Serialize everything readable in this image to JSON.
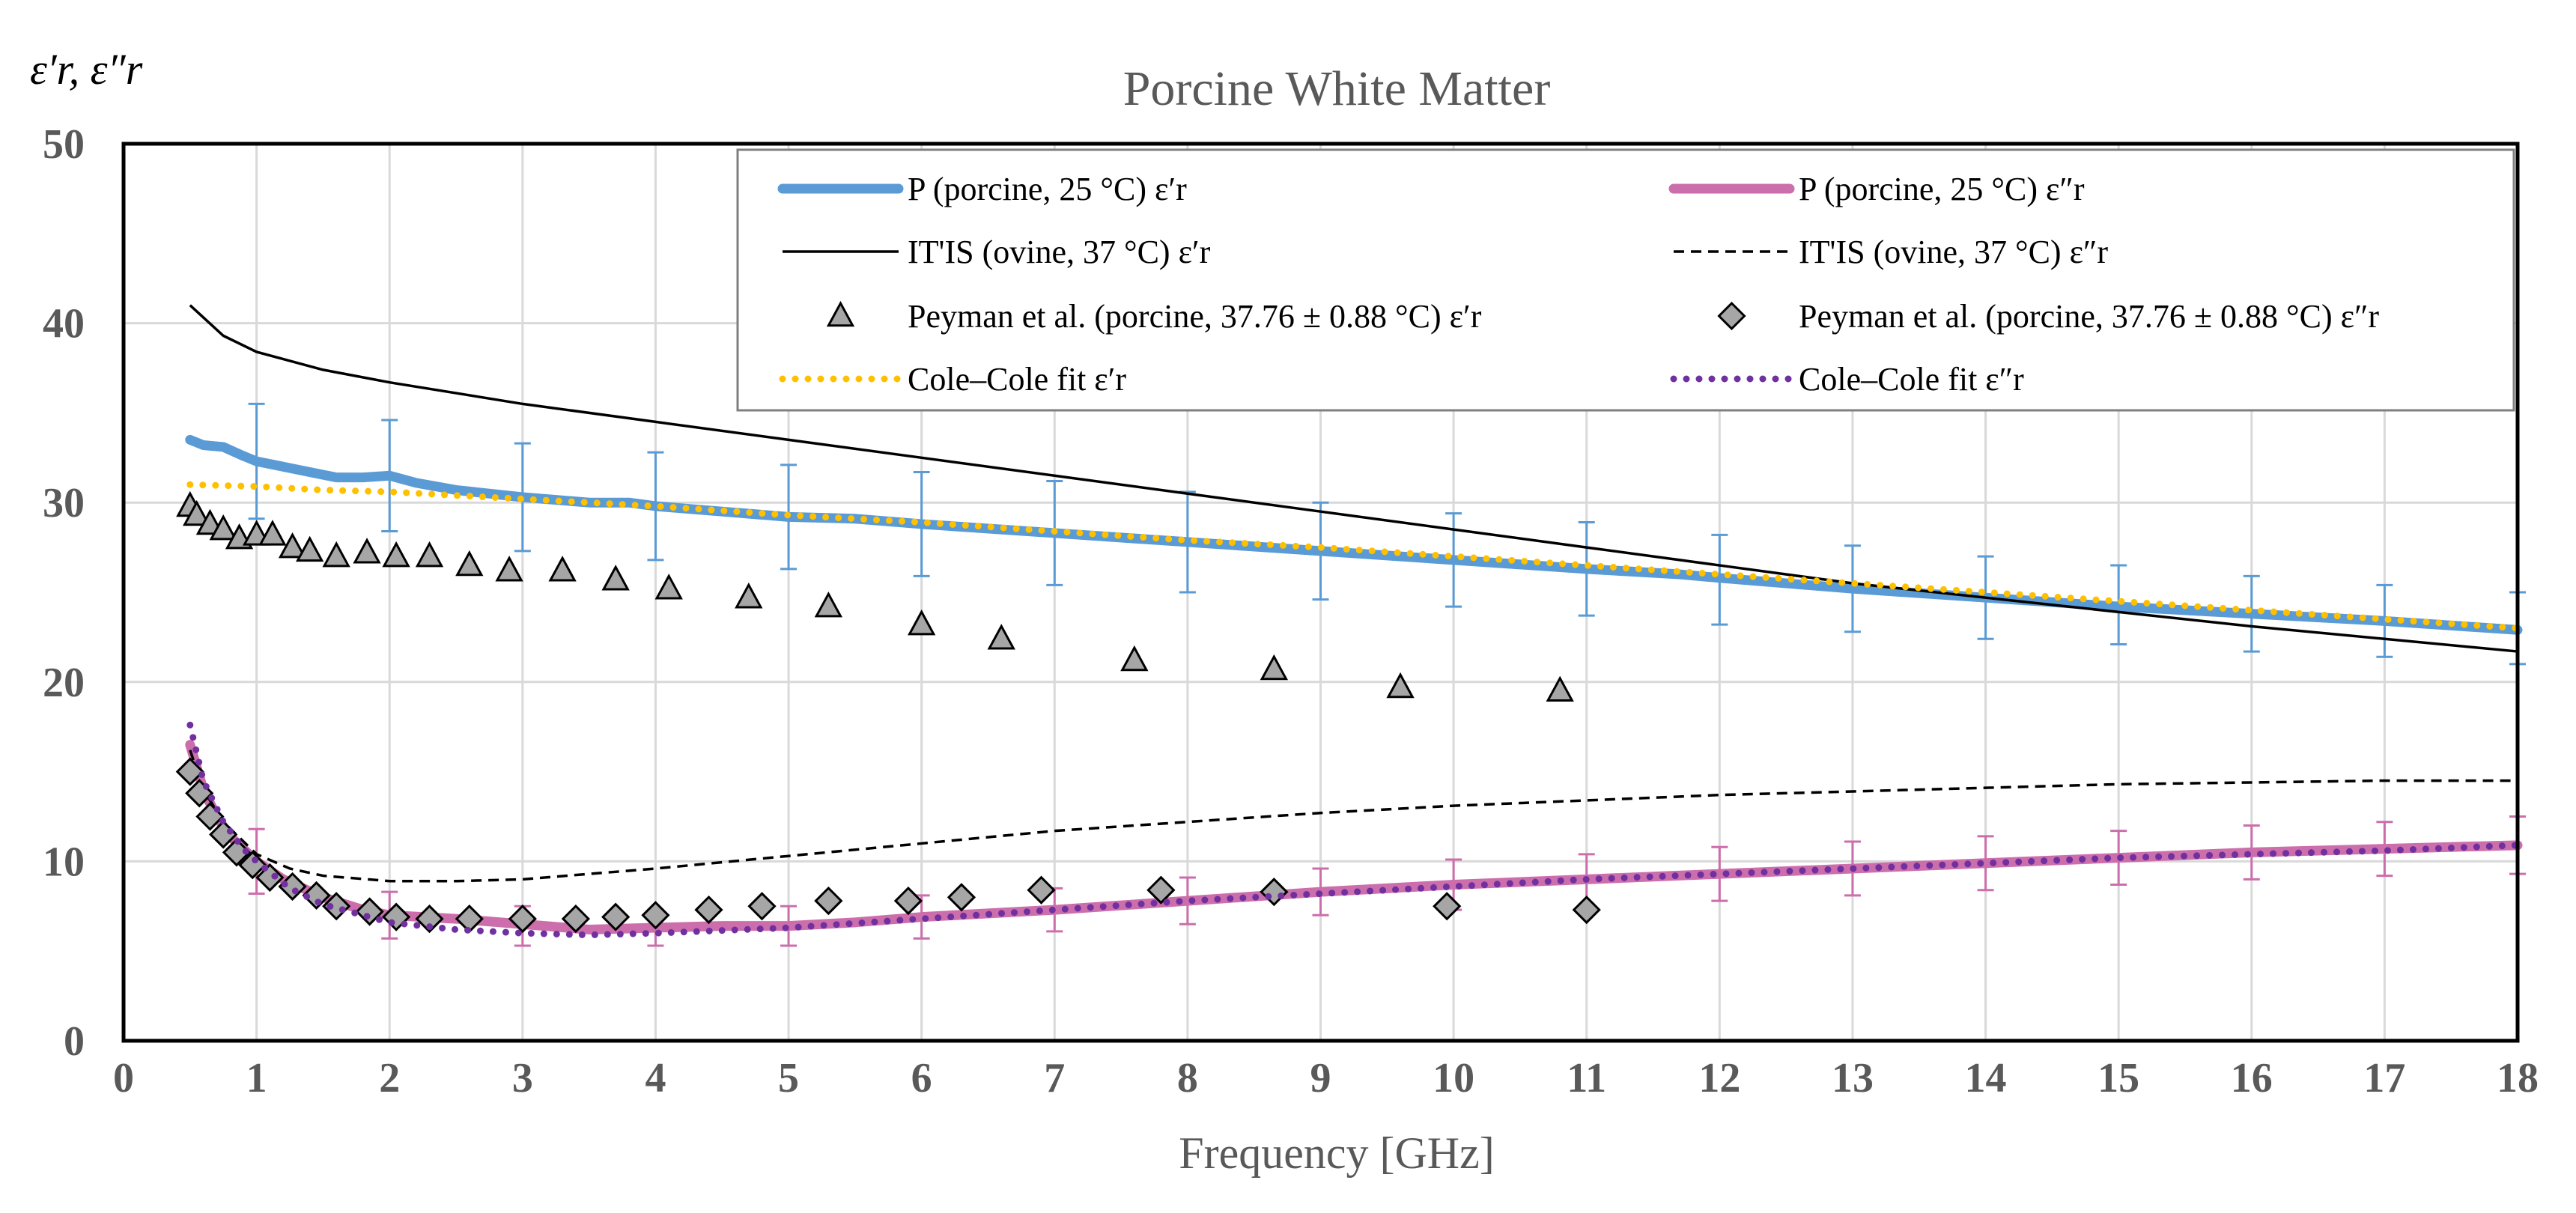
{
  "chart_data": {
    "type": "scatter",
    "title": "Porcine White Matter",
    "xlabel": "Frequency [GHz]",
    "ylabel": "ε′r, ε″r",
    "xlim": [
      0,
      18
    ],
    "ylim": [
      0,
      50
    ],
    "xticks": [
      0,
      1,
      2,
      3,
      4,
      5,
      6,
      7,
      8,
      9,
      10,
      11,
      12,
      13,
      14,
      15,
      16,
      17,
      18
    ],
    "yticks": [
      0,
      10,
      20,
      30,
      40,
      50
    ],
    "grid": true,
    "legend_position": "top",
    "series": [
      {
        "name": "P (porcine, 25 °C) ε′r",
        "style": "thick-line",
        "color": "#5b9bd5",
        "x": [
          0.5,
          0.6,
          0.75,
          0.9,
          1.0,
          1.2,
          1.4,
          1.6,
          1.8,
          2.0,
          2.2,
          2.5,
          3.0,
          3.5,
          3.8,
          4.0,
          4.5,
          5.0,
          5.5,
          6.0,
          7.0,
          8.0,
          9.0,
          10.0,
          11.0,
          11.7,
          12.0,
          13.0,
          14.0,
          15.0,
          16.0,
          17.0,
          18.0
        ],
        "y": [
          33.5,
          33.2,
          33.1,
          32.6,
          32.3,
          32.0,
          31.7,
          31.4,
          31.4,
          31.5,
          31.1,
          30.7,
          30.3,
          30.0,
          30.0,
          29.8,
          29.5,
          29.2,
          29.1,
          28.8,
          28.3,
          27.8,
          27.3,
          26.8,
          26.3,
          26.0,
          25.8,
          25.2,
          24.7,
          24.2,
          23.8,
          23.4,
          22.9
        ],
        "error_bars": {
          "x": [
            1,
            2,
            3,
            4,
            5,
            6,
            7,
            8,
            9,
            10,
            11,
            12,
            13,
            14,
            15,
            16,
            17,
            18
          ],
          "y": [
            32.3,
            31.5,
            30.3,
            29.8,
            29.2,
            28.8,
            28.3,
            27.8,
            27.3,
            26.8,
            26.3,
            25.7,
            25.2,
            24.7,
            24.3,
            23.8,
            23.4,
            23.0
          ],
          "err": [
            3.2,
            3.1,
            3.0,
            3.0,
            2.9,
            2.9,
            2.9,
            2.8,
            2.7,
            2.6,
            2.6,
            2.5,
            2.4,
            2.3,
            2.2,
            2.1,
            2.0,
            2.0
          ]
        }
      },
      {
        "name": "P (porcine, 25 °C) ε″r",
        "style": "thick-line",
        "color": "#cc6eab",
        "x": [
          0.5,
          0.6,
          0.7,
          0.8,
          1.0,
          1.2,
          1.5,
          1.8,
          2.0,
          2.5,
          3.0,
          3.5,
          4.0,
          4.5,
          5.0,
          5.5,
          6.0,
          7.0,
          8.0,
          9.0,
          10.0,
          11.0,
          12.0,
          13.0,
          14.0,
          15.0,
          16.0,
          17.0,
          18.0
        ],
        "y": [
          16.5,
          14.0,
          12.5,
          11.4,
          10.0,
          9.0,
          8.0,
          7.3,
          7.0,
          6.8,
          6.5,
          6.2,
          6.3,
          6.4,
          6.4,
          6.6,
          6.9,
          7.3,
          7.8,
          8.3,
          8.7,
          9.0,
          9.3,
          9.6,
          9.9,
          10.2,
          10.5,
          10.7,
          10.9
        ],
        "error_bars": {
          "x": [
            1,
            2,
            3,
            4,
            5,
            6,
            7,
            8,
            9,
            10,
            11,
            12,
            13,
            14,
            15,
            16,
            17,
            18
          ],
          "y": [
            10.0,
            7.0,
            6.4,
            6.3,
            6.4,
            6.9,
            7.3,
            7.8,
            8.3,
            8.7,
            9.0,
            9.3,
            9.6,
            9.9,
            10.2,
            10.5,
            10.7,
            10.9
          ],
          "err": [
            1.8,
            1.3,
            1.1,
            1.0,
            1.1,
            1.2,
            1.2,
            1.3,
            1.3,
            1.4,
            1.4,
            1.5,
            1.5,
            1.5,
            1.5,
            1.5,
            1.5,
            1.6
          ]
        }
      },
      {
        "name": "IT'IS (ovine, 37 °C) ε′r",
        "style": "solid-line",
        "color": "#000000",
        "x": [
          0.5,
          0.75,
          1.0,
          1.5,
          2.0,
          3.0,
          4.0,
          5.0,
          6.0,
          7.0,
          8.0,
          9.0,
          10.0,
          11.0,
          12.0,
          13.0,
          14.0,
          15.0,
          16.0,
          17.0,
          18.0
        ],
        "y": [
          41.0,
          39.3,
          38.4,
          37.4,
          36.7,
          35.5,
          34.5,
          33.5,
          32.5,
          31.5,
          30.5,
          29.5,
          28.5,
          27.5,
          26.5,
          25.5,
          24.7,
          23.9,
          23.1,
          22.4,
          21.7
        ]
      },
      {
        "name": "IT'IS (ovine, 37 °C) ε″r",
        "style": "dashed-line",
        "color": "#000000",
        "x": [
          0.5,
          0.6,
          0.75,
          1.0,
          1.25,
          1.5,
          2.0,
          2.5,
          3.0,
          4.0,
          5.0,
          6.0,
          7.0,
          8.0,
          9.0,
          10.0,
          11.0,
          12.0,
          13.0,
          14.0,
          15.0,
          16.0,
          17.0,
          18.0
        ],
        "y": [
          16.2,
          14.0,
          12.2,
          10.4,
          9.6,
          9.2,
          8.9,
          8.9,
          9.0,
          9.6,
          10.3,
          11.0,
          11.7,
          12.2,
          12.7,
          13.1,
          13.4,
          13.7,
          13.9,
          14.1,
          14.3,
          14.4,
          14.5,
          14.5
        ]
      },
      {
        "name": "Peyman et al. (porcine, 37.76 ± 0.88 °C) ε′r",
        "style": "triangle-markers",
        "color": "#a6a6a6",
        "x": [
          0.5,
          0.55,
          0.65,
          0.75,
          0.87,
          1.0,
          1.12,
          1.27,
          1.4,
          1.6,
          1.83,
          2.05,
          2.3,
          2.6,
          2.9,
          3.3,
          3.7,
          4.1,
          4.7,
          5.3,
          6.0,
          6.6,
          7.6,
          8.65,
          9.6,
          10.8
        ],
        "y": [
          29.8,
          29.3,
          28.8,
          28.5,
          28.0,
          28.2,
          28.2,
          27.5,
          27.3,
          27.0,
          27.2,
          27.0,
          27.0,
          26.5,
          26.2,
          26.2,
          25.7,
          25.2,
          24.7,
          24.2,
          23.2,
          22.4,
          21.2,
          20.7,
          19.7,
          19.5
        ]
      },
      {
        "name": "Peyman et al. (porcine, 37.76 ± 0.88 °C) ε″r",
        "style": "diamond-markers",
        "color": "#a6a6a6",
        "x": [
          0.5,
          0.57,
          0.65,
          0.75,
          0.85,
          0.97,
          1.1,
          1.27,
          1.45,
          1.6,
          1.85,
          2.05,
          2.3,
          2.6,
          3.0,
          3.4,
          3.7,
          4.0,
          4.4,
          4.8,
          5.3,
          5.9,
          6.3,
          6.9,
          7.8,
          8.65,
          9.95,
          11.0
        ],
        "y": [
          15.0,
          13.8,
          12.5,
          11.5,
          10.5,
          9.8,
          9.1,
          8.6,
          8.1,
          7.5,
          7.2,
          6.9,
          6.8,
          6.8,
          6.8,
          6.8,
          6.9,
          7.0,
          7.3,
          7.5,
          7.8,
          7.8,
          8.0,
          8.4,
          8.4,
          8.3,
          7.5,
          7.3
        ]
      },
      {
        "name": "Cole–Cole fit ε′r",
        "style": "dotted-line",
        "color": "#ffc000",
        "x": [
          0.5,
          1.0,
          1.5,
          2.0,
          3.0,
          4.0,
          5.0,
          6.0,
          7.0,
          8.0,
          9.0,
          10.0,
          11.0,
          12.0,
          13.0,
          14.0,
          15.0,
          16.0,
          17.0,
          18.0
        ],
        "y": [
          31.0,
          30.9,
          30.7,
          30.6,
          30.2,
          29.8,
          29.3,
          28.9,
          28.4,
          27.9,
          27.5,
          27.0,
          26.5,
          26.0,
          25.5,
          25.0,
          24.5,
          24.0,
          23.5,
          23.0
        ]
      },
      {
        "name": "Cole–Cole fit ε″r",
        "style": "dotted-line",
        "color": "#7030a0",
        "x": [
          0.5,
          0.6,
          0.75,
          0.9,
          1.0,
          1.25,
          1.5,
          2.0,
          2.5,
          3.0,
          3.5,
          4.0,
          5.0,
          6.0,
          7.0,
          8.0,
          9.0,
          10.0,
          11.0,
          12.0,
          13.0,
          14.0,
          15.0,
          16.0,
          17.0,
          18.0
        ],
        "y": [
          17.6,
          14.5,
          12.2,
          10.7,
          10.0,
          8.5,
          7.6,
          6.6,
          6.2,
          6.0,
          5.9,
          6.0,
          6.3,
          6.8,
          7.3,
          7.8,
          8.2,
          8.6,
          9.0,
          9.3,
          9.6,
          9.9,
          10.2,
          10.4,
          10.6,
          10.9
        ]
      }
    ]
  }
}
